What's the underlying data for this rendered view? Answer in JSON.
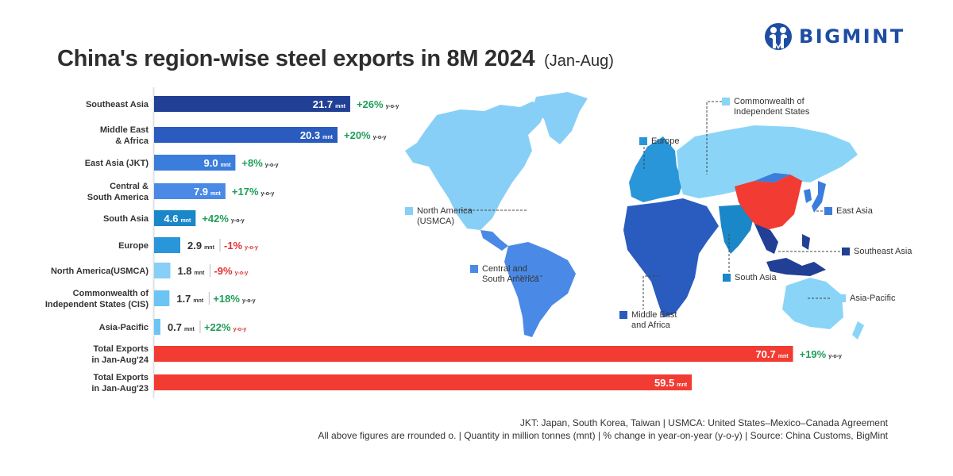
{
  "header": {
    "title": "China's region-wise steel exports in 8M 2024",
    "subtitle": "(Jan-Aug)",
    "logo_text": "BIGMINT",
    "logo_color": "#1d4ea3"
  },
  "chart_data": {
    "type": "bar",
    "orientation": "horizontal",
    "title": "China's region-wise steel exports in 8M 2024 (Jan-Aug)",
    "unit": "mnt",
    "change_suffix": "y-o-y",
    "xlabel": "",
    "ylabel": "",
    "xlim": [
      0,
      80
    ],
    "grid": false,
    "categories": [
      "Southeast Asia",
      "Middle East\n& Africa",
      "East Asia (JKT)",
      "Central &\nSouth America",
      "South Asia",
      "Europe",
      "North America(USMCA)",
      "Commonwealth of\nIndependent States (CIS)",
      "Asia-Pacific",
      "Total Exports\nin Jan-Aug'24",
      "Total Exports\nin Jan-Aug'23"
    ],
    "values": [
      21.7,
      20.3,
      9.0,
      7.9,
      4.6,
      2.9,
      1.8,
      1.7,
      0.7,
      70.7,
      59.5
    ],
    "value_labels": [
      "21.7",
      "20.3",
      "9.0",
      "7.9",
      "4.6",
      "2.9",
      "1.8",
      "1.7",
      "0.7",
      "70.7",
      "59.5"
    ],
    "yoy_change": [
      "+26%",
      "+20%",
      "+8%",
      "+17%",
      "+42%",
      "-1%",
      "-9%",
      "+18%",
      "+22%",
      "+19%",
      null
    ],
    "bar_colors": [
      "#213f95",
      "#2a5cbf",
      "#3b7ddb",
      "#4a8ae6",
      "#1a87c9",
      "#2996da",
      "#87cff7",
      "#6cc4f5",
      "#6cc4f5",
      "#f23b32",
      "#f23b32"
    ],
    "positive_color": "#1e9e5a",
    "negative_color": "#e03232"
  },
  "map": {
    "labels": [
      {
        "text": "Commonwealth of\nIndependent States",
        "color": "#8ad5f7"
      },
      {
        "text": "Europe",
        "color": "#2996da"
      },
      {
        "text": "North America\n(USMCA)",
        "color": "#87cff7"
      },
      {
        "text": "East Asia",
        "color": "#3b7ddb"
      },
      {
        "text": "Southeast Asia",
        "color": "#213f95"
      },
      {
        "text": "Central and\nSouth America",
        "color": "#4a8ae6"
      },
      {
        "text": "South Asia",
        "color": "#1a87c9"
      },
      {
        "text": "Asia-Pacific",
        "color": "#8ad5f7"
      },
      {
        "text": "Middle East\nand Africa",
        "color": "#2a5cbf"
      }
    ],
    "china_color": "#f23b32"
  },
  "footer": {
    "line1": "JKT: Japan, South Korea, Taiwan | USMCA: United States–Mexico–Canada Agreement",
    "line2": "All above figures are rrounded o.  | Quantity in million tonnes (mnt) | % change in year-on-year (y-o-y) | Source: China Customs, BigMint"
  }
}
